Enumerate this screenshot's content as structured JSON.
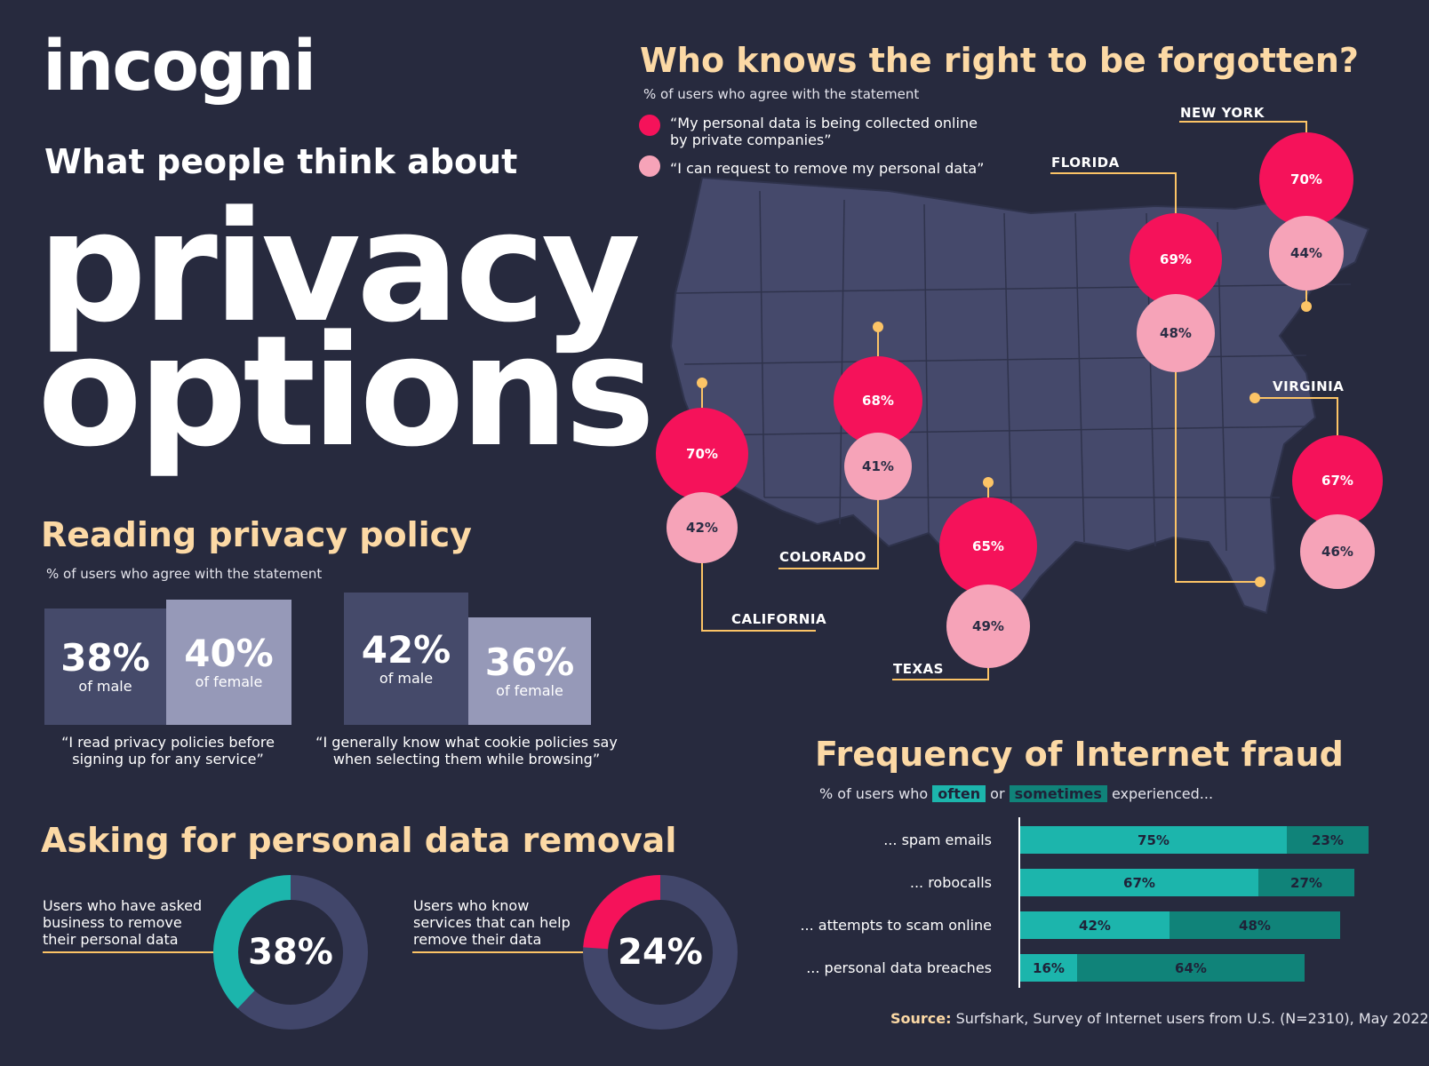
{
  "brand": "incogni",
  "subtitle": "What people think about",
  "title_line1": "privacy",
  "title_line2": "options",
  "reading": {
    "heading": "Reading privacy policy",
    "note": "% of users who agree with the statement",
    "groups": [
      {
        "male_value": "38%",
        "male_label": "of male",
        "female_value": "40%",
        "female_label": "of female",
        "quote": "“I read privacy policies before signing up for any service”"
      },
      {
        "male_value": "42%",
        "male_label": "of male",
        "female_value": "36%",
        "female_label": "of female",
        "quote": "“I generally know what cookie policies say when selecting them while browsing”"
      }
    ]
  },
  "removal": {
    "heading": "Asking for personal data removal",
    "items": [
      {
        "label": "Users who have asked business to remove their personal data",
        "value_text": "38%",
        "value": 38,
        "color": "#1cb5ac"
      },
      {
        "label": "Users who know services that can help remove their data",
        "value_text": "24%",
        "value": 24,
        "color": "#f5125a"
      }
    ]
  },
  "forgotten": {
    "heading": "Who knows the right to be forgotten?",
    "note": "% of users who agree with the statement",
    "legend": [
      {
        "text": "“My personal data is being collected online by private companies”",
        "color": "#f5125a"
      },
      {
        "text": "“I can request to remove my personal data”",
        "color": "#f6a3b8"
      }
    ],
    "states": [
      {
        "name": "NEW YORK",
        "collected": "70%",
        "request": "44%"
      },
      {
        "name": "FLORIDA",
        "collected": "69%",
        "request": "48%"
      },
      {
        "name": "COLORADO",
        "collected": "68%",
        "request": "41%"
      },
      {
        "name": "CALIFORNIA",
        "collected": "70%",
        "request": "42%"
      },
      {
        "name": "TEXAS",
        "collected": "65%",
        "request": "49%"
      },
      {
        "name": "VIRGINIA",
        "collected": "67%",
        "request": "46%"
      }
    ]
  },
  "fraud": {
    "heading": "Frequency of Internet fraud",
    "note_pre": "% of users who",
    "often": "often",
    "or": "or",
    "sometimes": "sometimes",
    "note_post": "experienced...",
    "often_color": "#1cb5ac",
    "sometimes_color": "#108379"
  },
  "chart_data": {
    "type": "bar",
    "orientation": "horizontal",
    "stacked": true,
    "categories": [
      "... spam emails",
      "... robocalls",
      "... attempts to scam online",
      "... personal data breaches"
    ],
    "series": [
      {
        "name": "often",
        "values": [
          75,
          67,
          42,
          16
        ]
      },
      {
        "name": "sometimes",
        "values": [
          23,
          27,
          48,
          64
        ]
      }
    ],
    "xlim": [
      0,
      100
    ]
  },
  "source": {
    "label": "Source:",
    "text": "Surfshark, Survey of Internet users from U.S. (N=2310), May 2022"
  }
}
